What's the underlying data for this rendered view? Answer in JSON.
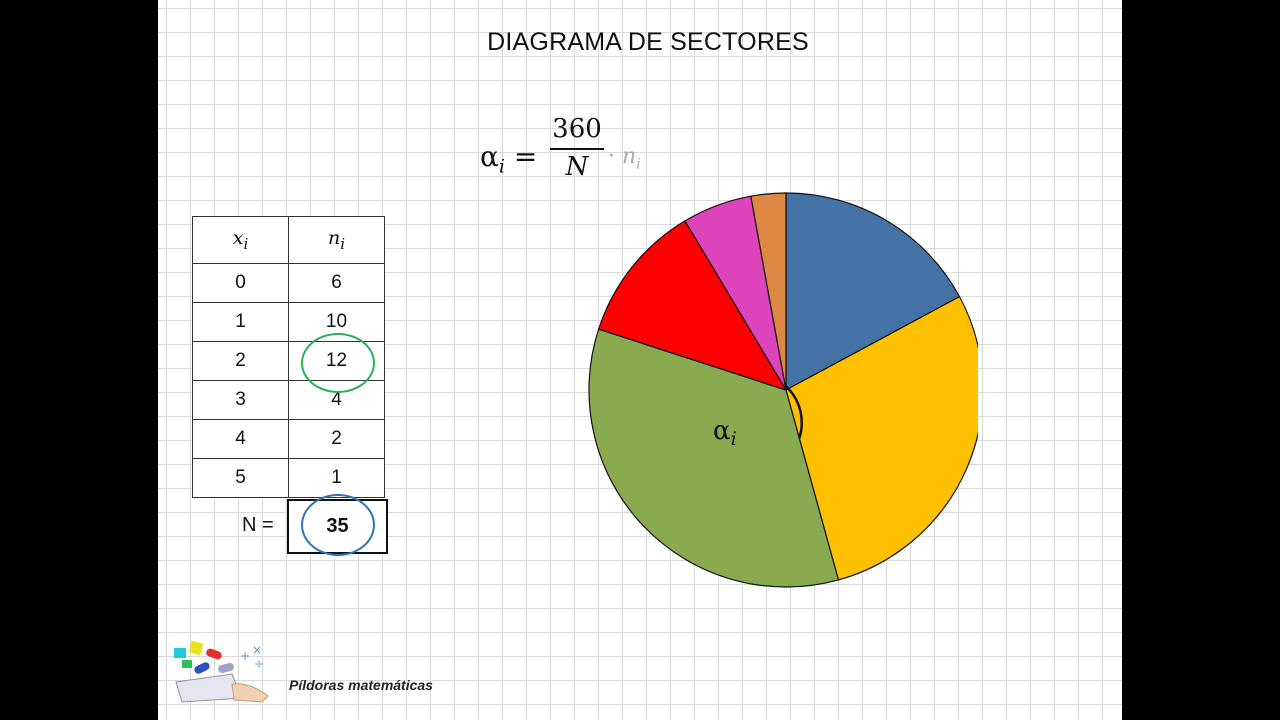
{
  "title": "DIAGRAMA DE SECTORES",
  "formula": {
    "alpha": "α",
    "subscript": "i",
    "equals": "=",
    "numerator": "360",
    "denominator": "N",
    "dot": "·",
    "n_symbol": "n",
    "n_subscript": "i"
  },
  "table": {
    "col1_symbol": "x",
    "col1_sub": "i",
    "col2_symbol": "n",
    "col2_sub": "i",
    "total_label": "N =",
    "total_value": "35"
  },
  "angle_label": {
    "symbol": "α",
    "subscript": "i"
  },
  "brand": "Píldoras matemáticas",
  "chart_data": {
    "type": "pie",
    "title": "DIAGRAMA DE SECTORES",
    "categories": [
      "0",
      "1",
      "2",
      "3",
      "4",
      "5"
    ],
    "values": [
      6,
      10,
      12,
      4,
      2,
      1
    ],
    "total": 35,
    "colors": [
      "#4472a4",
      "#ffc000",
      "#8aaa50",
      "#ff0000",
      "#dd44bb",
      "#dd8844"
    ],
    "highlighted_value": 12
  }
}
